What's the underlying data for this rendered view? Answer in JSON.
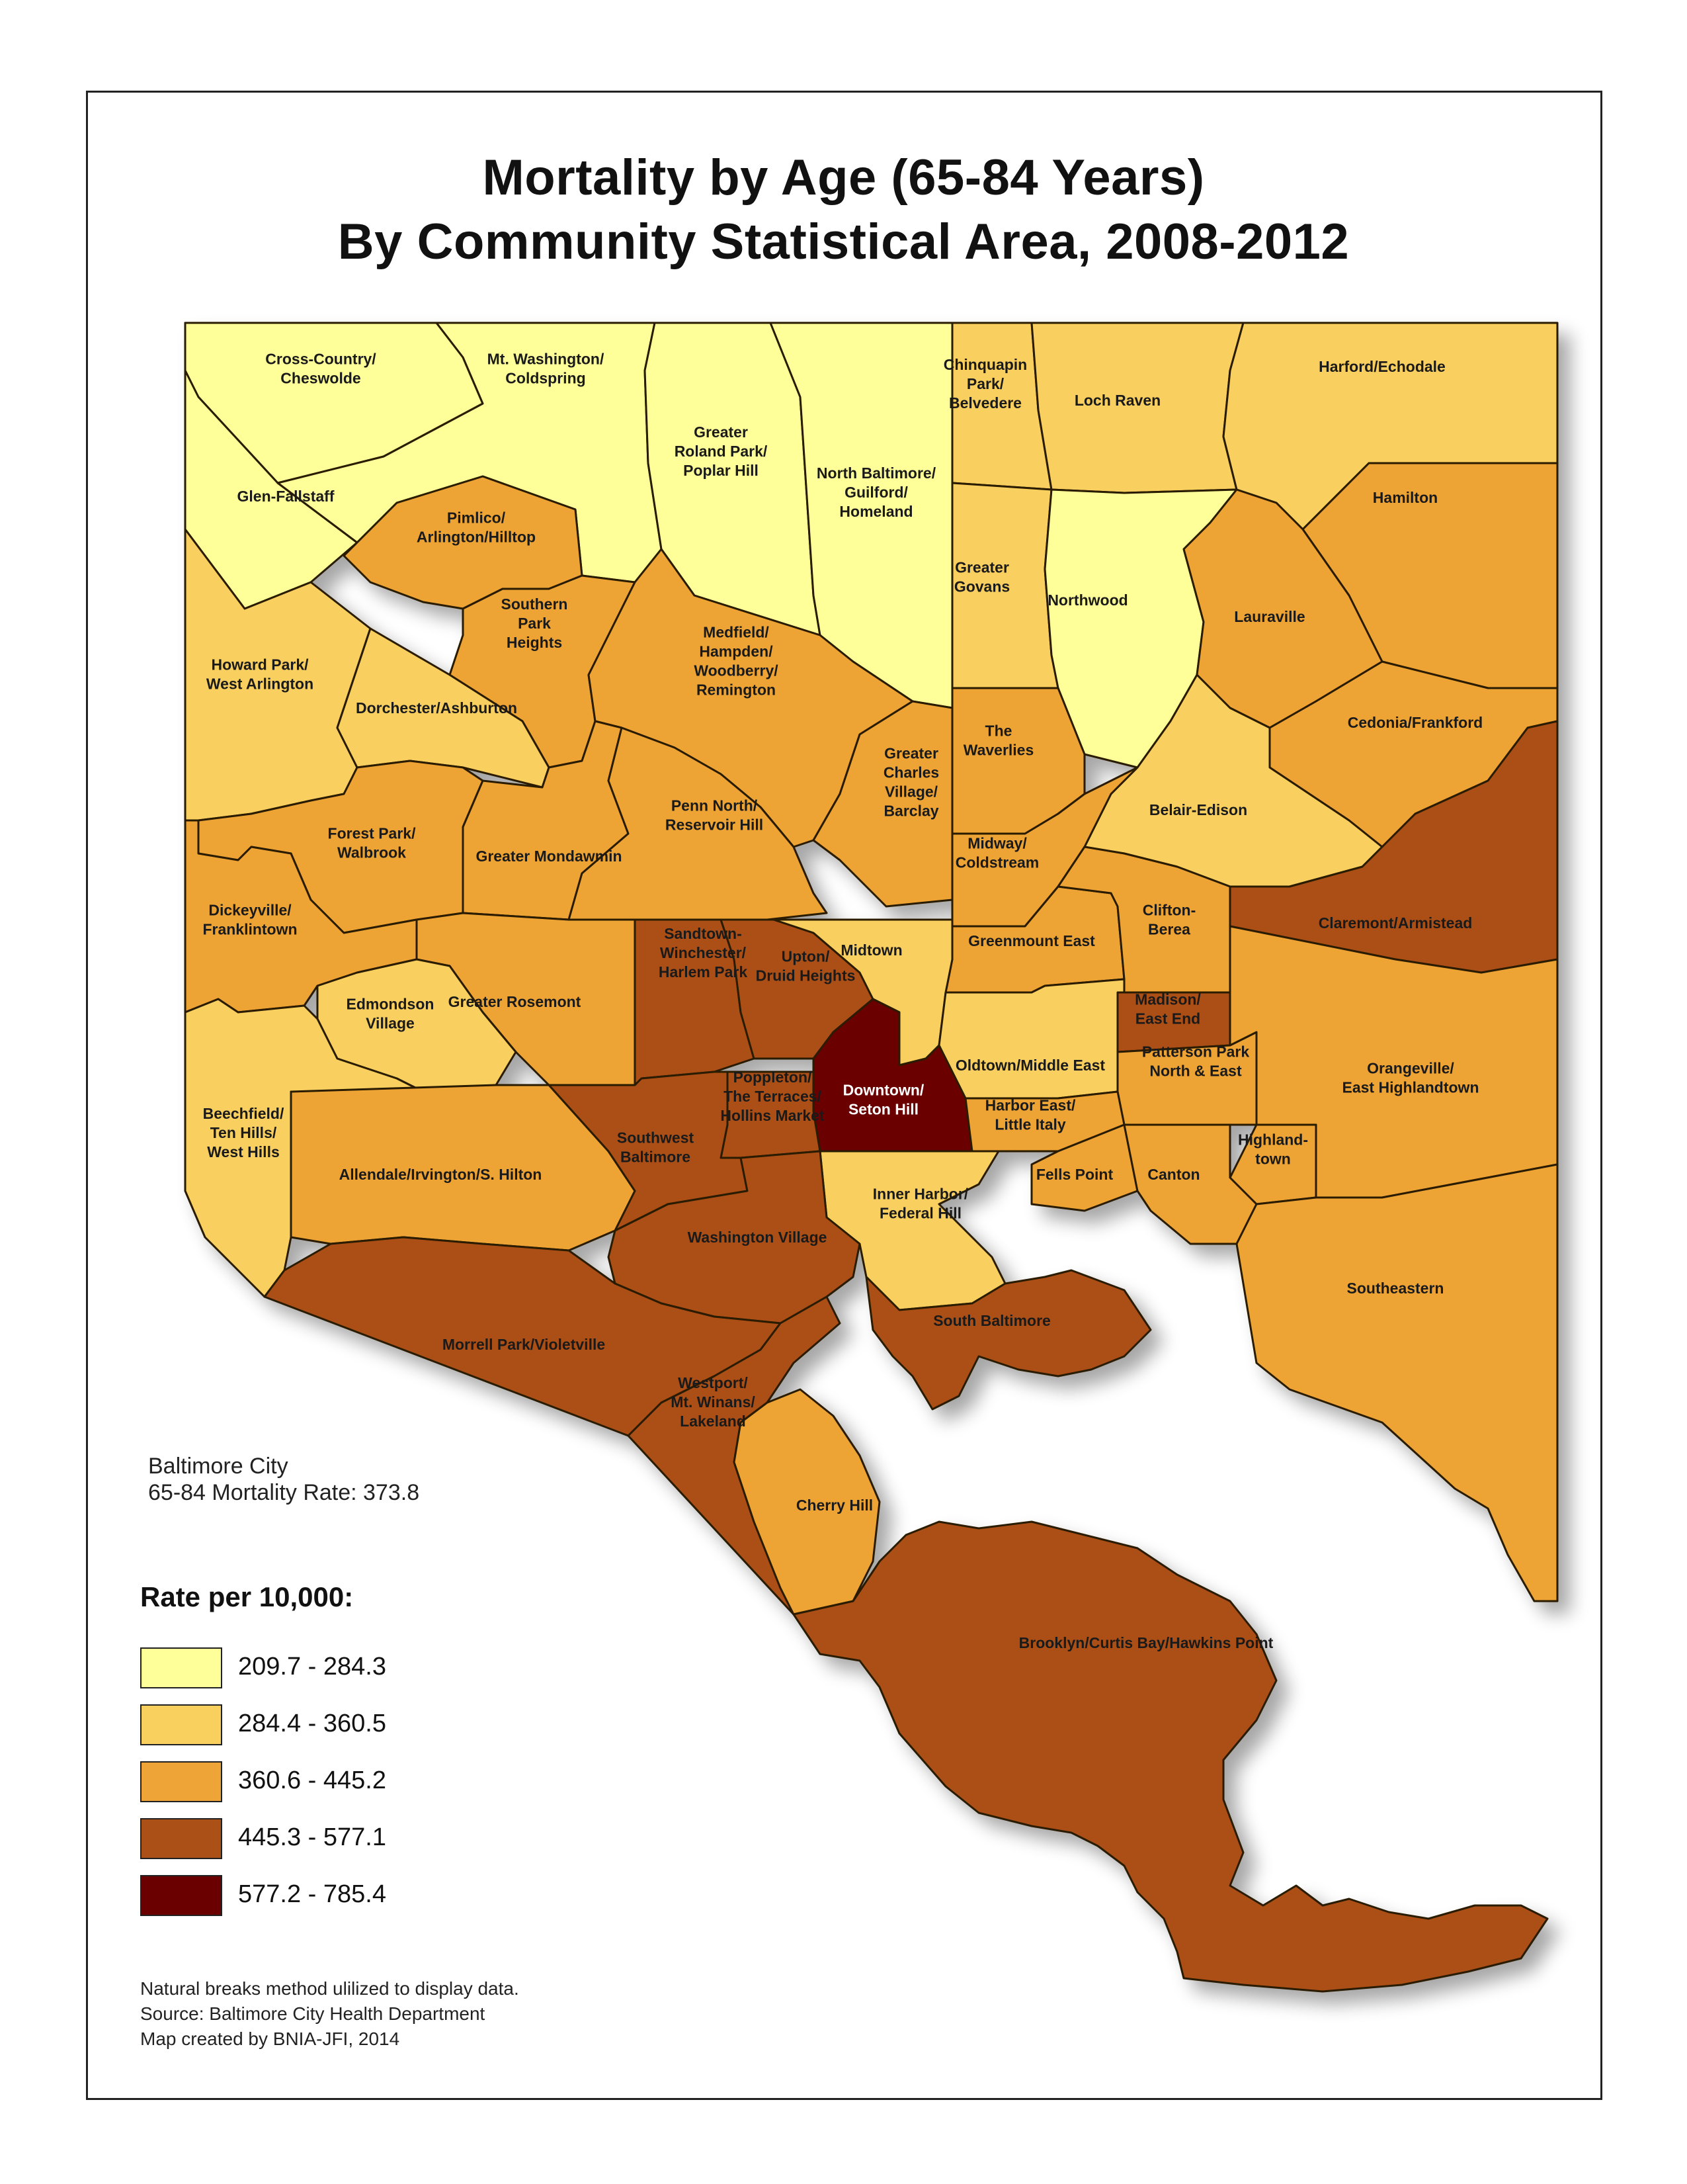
{
  "title": {
    "line1": "Mortality by Age (65-84 Years)",
    "line2": "By Community Statistical Area, 2008-2012"
  },
  "citywide": {
    "line1": "Baltimore City",
    "line2": "65-84 Mortality Rate: 373.8"
  },
  "legend": {
    "title": "Rate per 10,000:",
    "classes": [
      {
        "label": "209.7 - 284.3",
        "color": "#ffff99"
      },
      {
        "label": "284.4 - 360.5",
        "color": "#f9cf5e"
      },
      {
        "label": "360.6 - 445.2",
        "color": "#eea436"
      },
      {
        "label": "445.3 - 577.1",
        "color": "#ab5016"
      },
      {
        "label": "577.2 - 785.4",
        "color": "#6b0000"
      }
    ]
  },
  "notes": {
    "line1": "Natural breaks method ulilized to display data.",
    "line2": "Source: Baltimore City Health Department",
    "line3": "Map created by BNIA-JFI, 2014"
  },
  "areas": {
    "cross_country": {
      "label": [
        "Cross-Country/",
        "Cheswolde"
      ],
      "class": 0
    },
    "mt_washington": {
      "label": [
        "Mt. Washington/",
        "Coldspring"
      ],
      "class": 0
    },
    "roland_park": {
      "label": [
        "Greater",
        "Roland Park/",
        "Poplar Hill"
      ],
      "class": 0
    },
    "north_baltimore": {
      "label": [
        "North Baltimore/",
        "Guilford/",
        "Homeland"
      ],
      "class": 0
    },
    "chinquapin": {
      "label": [
        "Chinquapin",
        "Park/",
        "Belvedere"
      ],
      "class": 1
    },
    "loch_raven": {
      "label": [
        "Loch Raven"
      ],
      "class": 1
    },
    "harford": {
      "label": [
        "Harford/Echodale"
      ],
      "class": 1
    },
    "glen_fallstaff": {
      "label": [
        "Glen-Fallstaff"
      ],
      "class": 0
    },
    "pimlico": {
      "label": [
        "Pimlico/",
        "Arlington/Hilltop"
      ],
      "class": 2
    },
    "hamilton": {
      "label": [
        "Hamilton"
      ],
      "class": 2
    },
    "greater_govans": {
      "label": [
        "Greater",
        "Govans"
      ],
      "class": 1
    },
    "northwood": {
      "label": [
        "Northwood"
      ],
      "class": 0
    },
    "lauraville": {
      "label": [
        "Lauraville"
      ],
      "class": 2
    },
    "southern_park_heights": {
      "label": [
        "Southern",
        "Park",
        "Heights"
      ],
      "class": 2
    },
    "howard_park": {
      "label": [
        "Howard Park/",
        "West Arlington"
      ],
      "class": 1
    },
    "dorchester": {
      "label": [
        "Dorchester/Ashburton"
      ],
      "class": 1
    },
    "medfield": {
      "label": [
        "Medfield/",
        "Hampden/",
        "Woodberry/",
        "Remington"
      ],
      "class": 2
    },
    "cedonia": {
      "label": [
        "Cedonia/Frankford"
      ],
      "class": 2
    },
    "waverlies": {
      "label": [
        "The",
        "Waverlies"
      ],
      "class": 2
    },
    "charles_village": {
      "label": [
        "Greater",
        "Charles",
        "Village/",
        "Barclay"
      ],
      "class": 2
    },
    "belair_edison": {
      "label": [
        "Belair-Edison"
      ],
      "class": 1
    },
    "penn_north": {
      "label": [
        "Penn North/",
        "Reservoir Hill"
      ],
      "class": 2
    },
    "forest_park": {
      "label": [
        "Forest Park/",
        "Walbrook"
      ],
      "class": 2
    },
    "mondawmin": {
      "label": [
        "Greater Mondawmin"
      ],
      "class": 2
    },
    "midway": {
      "label": [
        "Midway/",
        "Coldstream"
      ],
      "class": 2
    },
    "dickeyville": {
      "label": [
        "Dickeyville/",
        "Franklintown"
      ],
      "class": 2
    },
    "clifton": {
      "label": [
        "Clifton-",
        "Berea"
      ],
      "class": 2
    },
    "claremont": {
      "label": [
        "Claremont/Armistead"
      ],
      "class": 3
    },
    "greenmount": {
      "label": [
        "Greenmount East"
      ],
      "class": 2
    },
    "midtown": {
      "label": [
        "Midtown"
      ],
      "class": 1
    },
    "sandtown": {
      "label": [
        "Sandtown-",
        "Winchester/",
        "Harlem Park"
      ],
      "class": 3
    },
    "upton": {
      "label": [
        "Upton/",
        "Druid Heights"
      ],
      "class": 3
    },
    "rosemont": {
      "label": [
        "Greater Rosemont"
      ],
      "class": 2
    },
    "edmondson": {
      "label": [
        "Edmondson",
        "Village"
      ],
      "class": 1
    },
    "madison": {
      "label": [
        "Madison/",
        "East End"
      ],
      "class": 3
    },
    "oldtown": {
      "label": [
        "Oldtown/Middle East"
      ],
      "class": 1
    },
    "patterson": {
      "label": [
        "Patterson Park",
        "North & East"
      ],
      "class": 2
    },
    "downtown": {
      "label": [
        "Downtown/",
        "Seton Hill"
      ],
      "class": 4
    },
    "orangeville": {
      "label": [
        "Orangeville/",
        "East Highlandtown"
      ],
      "class": 2
    },
    "poppleton": {
      "label": [
        "Poppleton/",
        "The Terraces/",
        "Hollins Market"
      ],
      "class": 3
    },
    "harbor_east": {
      "label": [
        "Harbor East/",
        "Little Italy"
      ],
      "class": 2
    },
    "beechfield": {
      "label": [
        "Beechfield/",
        "Ten Hills/",
        "West Hills"
      ],
      "class": 1
    },
    "southwest": {
      "label": [
        "Southwest",
        "Baltimore"
      ],
      "class": 3
    },
    "highlandtown": {
      "label": [
        "Highland-",
        "town"
      ],
      "class": 2
    },
    "allendale": {
      "label": [
        "Allendale/Irvington/S. Hilton"
      ],
      "class": 2
    },
    "fells_point": {
      "label": [
        "Fells Point"
      ],
      "class": 2
    },
    "canton": {
      "label": [
        "Canton"
      ],
      "class": 2
    },
    "inner_harbor": {
      "label": [
        "Inner Harbor/",
        "Federal Hill"
      ],
      "class": 1
    },
    "washington_village": {
      "label": [
        "Washington Village"
      ],
      "class": 3
    },
    "southeastern": {
      "label": [
        "Southeastern"
      ],
      "class": 2
    },
    "south_baltimore": {
      "label": [
        "South Baltimore"
      ],
      "class": 3
    },
    "morrell_park": {
      "label": [
        "Morrell Park/Violetville"
      ],
      "class": 3
    },
    "westport": {
      "label": [
        "Westport/",
        "Mt. Winans/",
        "Lakeland"
      ],
      "class": 3
    },
    "cherry_hill": {
      "label": [
        "Cherry Hill"
      ],
      "class": 2
    },
    "brooklyn": {
      "label": [
        "Brooklyn/Curtis Bay/Hawkins Point"
      ],
      "class": 3
    }
  }
}
